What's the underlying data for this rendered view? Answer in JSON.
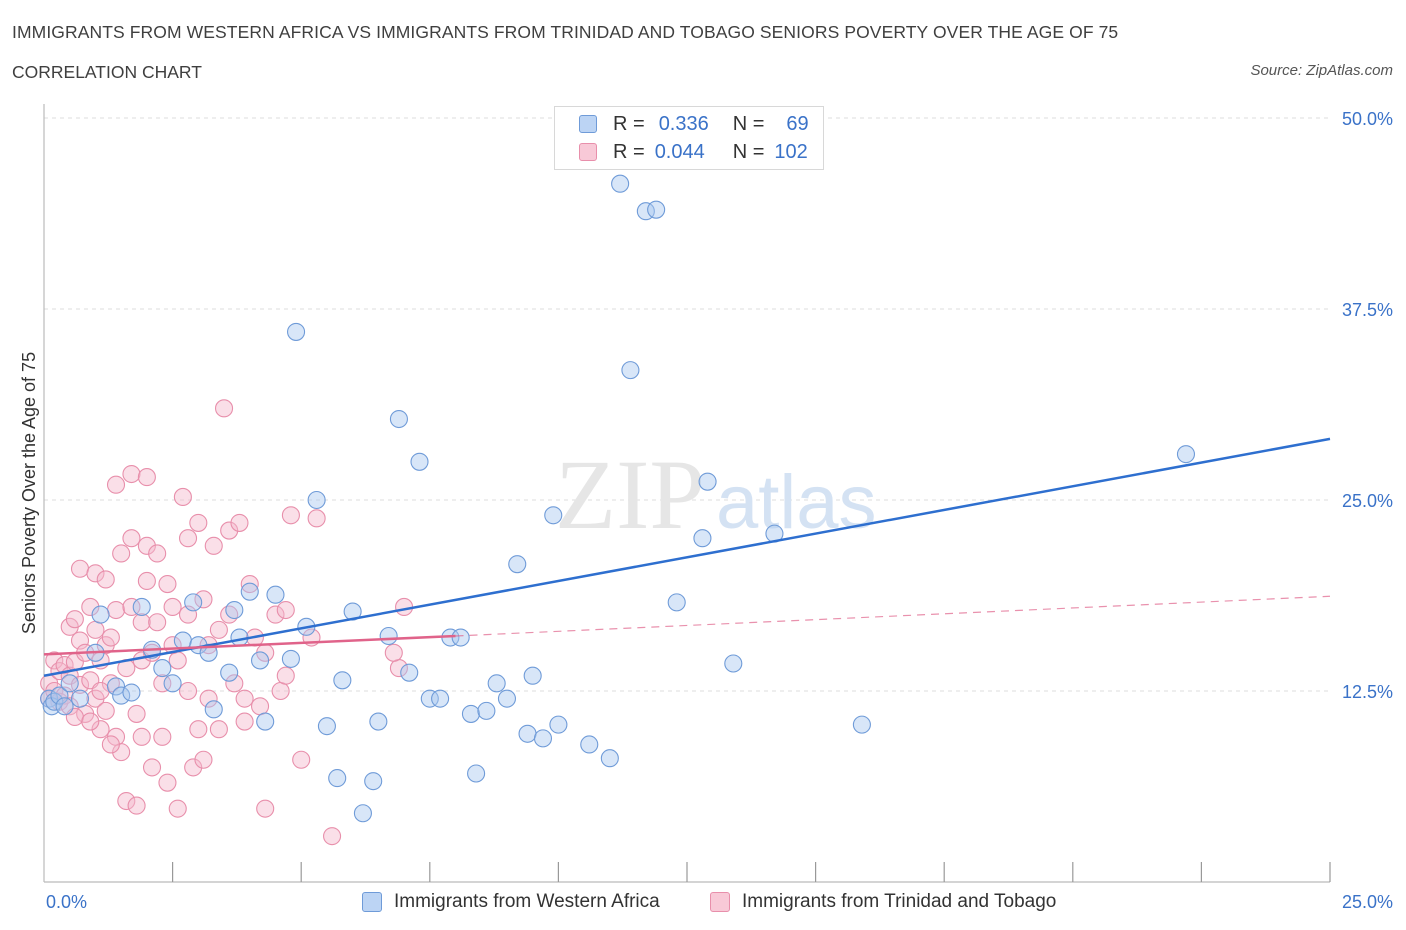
{
  "title": "IMMIGRANTS FROM WESTERN AFRICA VS IMMIGRANTS FROM TRINIDAD AND TOBAGO SENIORS POVERTY OVER THE AGE OF 75",
  "subtitle": "CORRELATION CHART",
  "source": "Source: ZipAtlas.com",
  "watermark": {
    "zip": "ZIP",
    "atlas": "atlas"
  },
  "colors": {
    "blue_fill": "#a9c7ef",
    "blue_stroke": "#6f9bd8",
    "blue_line": "#2e6fcf",
    "pink_fill": "#f5b8cb",
    "pink_stroke": "#e88fab",
    "pink_line": "#e0638a",
    "axis_text": "#3a72c8",
    "grid": "#dddddd"
  },
  "legend": {
    "r_label": "R =",
    "n_label": "N =",
    "series1_r": "0.336",
    "series1_n": "69",
    "series2_r": "0.044",
    "series2_n": "102"
  },
  "chart_data": {
    "type": "scatter",
    "xlabel": "",
    "ylabel": "Seniors Poverty Over the Age of 75",
    "xlim": [
      0,
      25
    ],
    "ylim": [
      0,
      50
    ],
    "x_tick_labels": [
      "0.0%",
      "25.0%"
    ],
    "y_ticks": [
      12.5,
      25.0,
      37.5,
      50.0
    ],
    "y_tick_labels": [
      "12.5%",
      "25.0%",
      "37.5%",
      "50.0%"
    ],
    "grid": "horizontal dashed",
    "legend_placement": "top-center",
    "series": [
      {
        "name": "Immigrants from Western Africa",
        "r": 0.336,
        "n": 69,
        "trend": {
          "x": [
            0,
            25
          ],
          "y": [
            13.5,
            29.0
          ]
        },
        "points": [
          [
            0.1,
            12.0
          ],
          [
            0.15,
            11.5
          ],
          [
            0.2,
            11.8
          ],
          [
            0.3,
            12.2
          ],
          [
            0.4,
            11.5
          ],
          [
            0.5,
            13.0
          ],
          [
            0.7,
            12.0
          ],
          [
            1.0,
            15.0
          ],
          [
            1.1,
            17.5
          ],
          [
            1.4,
            12.8
          ],
          [
            1.5,
            12.2
          ],
          [
            1.7,
            12.4
          ],
          [
            1.9,
            18.0
          ],
          [
            2.1,
            15.2
          ],
          [
            2.3,
            14.0
          ],
          [
            2.5,
            13.0
          ],
          [
            2.7,
            15.8
          ],
          [
            2.9,
            18.3
          ],
          [
            3.0,
            15.5
          ],
          [
            3.2,
            15.0
          ],
          [
            3.3,
            11.3
          ],
          [
            3.6,
            13.7
          ],
          [
            3.7,
            17.8
          ],
          [
            3.8,
            16.0
          ],
          [
            4.0,
            19.0
          ],
          [
            4.2,
            14.5
          ],
          [
            4.3,
            10.5
          ],
          [
            4.5,
            18.8
          ],
          [
            4.9,
            36.0
          ],
          [
            4.8,
            14.6
          ],
          [
            5.1,
            16.7
          ],
          [
            5.3,
            25.0
          ],
          [
            5.5,
            10.2
          ],
          [
            5.7,
            6.8
          ],
          [
            5.8,
            13.2
          ],
          [
            6.0,
            17.7
          ],
          [
            6.2,
            4.5
          ],
          [
            6.4,
            6.6
          ],
          [
            6.5,
            10.5
          ],
          [
            6.7,
            16.1
          ],
          [
            6.9,
            30.3
          ],
          [
            7.1,
            13.7
          ],
          [
            7.3,
            27.5
          ],
          [
            7.5,
            12.0
          ],
          [
            7.7,
            12.0
          ],
          [
            7.9,
            16.0
          ],
          [
            8.1,
            16.0
          ],
          [
            8.3,
            11.0
          ],
          [
            8.4,
            7.1
          ],
          [
            8.6,
            11.2
          ],
          [
            8.8,
            13.0
          ],
          [
            9.0,
            12.0
          ],
          [
            9.2,
            20.8
          ],
          [
            9.4,
            9.7
          ],
          [
            9.5,
            13.5
          ],
          [
            9.7,
            9.4
          ],
          [
            9.9,
            24.0
          ],
          [
            10.0,
            10.3
          ],
          [
            10.6,
            9.0
          ],
          [
            11.0,
            8.1
          ],
          [
            11.2,
            45.7
          ],
          [
            11.7,
            43.9
          ],
          [
            11.4,
            33.5
          ],
          [
            11.9,
            44.0
          ],
          [
            12.3,
            18.3
          ],
          [
            12.8,
            22.5
          ],
          [
            12.9,
            26.2
          ],
          [
            13.4,
            14.3
          ],
          [
            14.2,
            22.8
          ],
          [
            15.9,
            10.3
          ],
          [
            22.2,
            28.0
          ]
        ]
      },
      {
        "name": "Immigrants from Trinidad and Tobago",
        "r": 0.044,
        "n": 102,
        "trend": {
          "x": [
            0,
            8.0,
            25
          ],
          "y": [
            14.9,
            16.1,
            18.7
          ]
        },
        "points": [
          [
            0.1,
            13.0
          ],
          [
            0.1,
            12.0
          ],
          [
            0.2,
            14.5
          ],
          [
            0.2,
            12.5
          ],
          [
            0.3,
            13.8
          ],
          [
            0.3,
            11.8
          ],
          [
            0.4,
            14.2
          ],
          [
            0.4,
            12.2
          ],
          [
            0.5,
            16.7
          ],
          [
            0.5,
            13.5
          ],
          [
            0.6,
            17.2
          ],
          [
            0.6,
            14.4
          ],
          [
            0.7,
            20.5
          ],
          [
            0.7,
            15.8
          ],
          [
            0.7,
            12.9
          ],
          [
            0.8,
            11.0
          ],
          [
            0.8,
            15.0
          ],
          [
            0.9,
            18.0
          ],
          [
            0.9,
            13.2
          ],
          [
            1.0,
            20.2
          ],
          [
            1.0,
            16.5
          ],
          [
            1.0,
            12.0
          ],
          [
            1.1,
            10.0
          ],
          [
            1.1,
            14.5
          ],
          [
            1.2,
            11.2
          ],
          [
            1.2,
            15.5
          ],
          [
            1.2,
            19.8
          ],
          [
            1.3,
            16.0
          ],
          [
            1.3,
            13.0
          ],
          [
            1.4,
            17.8
          ],
          [
            1.4,
            9.5
          ],
          [
            1.4,
            26.0
          ],
          [
            1.5,
            21.5
          ],
          [
            1.5,
            8.5
          ],
          [
            1.6,
            14.0
          ],
          [
            1.6,
            5.3
          ],
          [
            1.7,
            26.7
          ],
          [
            1.7,
            22.5
          ],
          [
            1.7,
            18.0
          ],
          [
            1.8,
            11.0
          ],
          [
            1.8,
            5.0
          ],
          [
            1.9,
            17.0
          ],
          [
            1.9,
            14.5
          ],
          [
            1.9,
            9.5
          ],
          [
            2.0,
            26.5
          ],
          [
            2.0,
            22.0
          ],
          [
            2.0,
            19.7
          ],
          [
            2.1,
            7.5
          ],
          [
            2.1,
            15.0
          ],
          [
            2.2,
            21.5
          ],
          [
            2.2,
            17.0
          ],
          [
            2.3,
            9.5
          ],
          [
            2.3,
            13.0
          ],
          [
            2.4,
            19.5
          ],
          [
            2.4,
            6.5
          ],
          [
            2.5,
            18.0
          ],
          [
            2.6,
            14.5
          ],
          [
            2.6,
            4.8
          ],
          [
            2.7,
            25.2
          ],
          [
            2.8,
            22.5
          ],
          [
            2.8,
            17.5
          ],
          [
            2.8,
            12.5
          ],
          [
            2.9,
            7.5
          ],
          [
            3.0,
            23.5
          ],
          [
            3.0,
            10.0
          ],
          [
            3.1,
            18.5
          ],
          [
            3.1,
            8.0
          ],
          [
            3.2,
            15.5
          ],
          [
            3.3,
            22.0
          ],
          [
            3.4,
            16.5
          ],
          [
            3.4,
            10.0
          ],
          [
            3.5,
            31.0
          ],
          [
            3.6,
            23.0
          ],
          [
            3.6,
            17.5
          ],
          [
            3.7,
            13.0
          ],
          [
            3.8,
            23.5
          ],
          [
            3.9,
            12.0
          ],
          [
            3.9,
            10.5
          ],
          [
            4.0,
            19.5
          ],
          [
            4.1,
            16.0
          ],
          [
            4.2,
            11.5
          ],
          [
            4.3,
            15.0
          ],
          [
            4.3,
            4.8
          ],
          [
            4.5,
            17.5
          ],
          [
            4.6,
            12.5
          ],
          [
            4.7,
            13.5
          ],
          [
            4.7,
            17.8
          ],
          [
            4.8,
            24.0
          ],
          [
            5.0,
            8.0
          ],
          [
            5.2,
            16.0
          ],
          [
            5.3,
            23.8
          ],
          [
            5.6,
            3.0
          ],
          [
            7.0,
            18.0
          ],
          [
            6.9,
            14.0
          ],
          [
            6.8,
            15.0
          ],
          [
            0.5,
            11.5
          ],
          [
            0.6,
            10.8
          ],
          [
            0.9,
            10.5
          ],
          [
            1.3,
            9.0
          ],
          [
            2.5,
            15.5
          ],
          [
            3.2,
            12.0
          ],
          [
            1.1,
            12.5
          ]
        ]
      }
    ]
  },
  "bottom_legend": {
    "series1": "Immigrants from Western Africa",
    "series2": "Immigrants from Trinidad and Tobago"
  }
}
